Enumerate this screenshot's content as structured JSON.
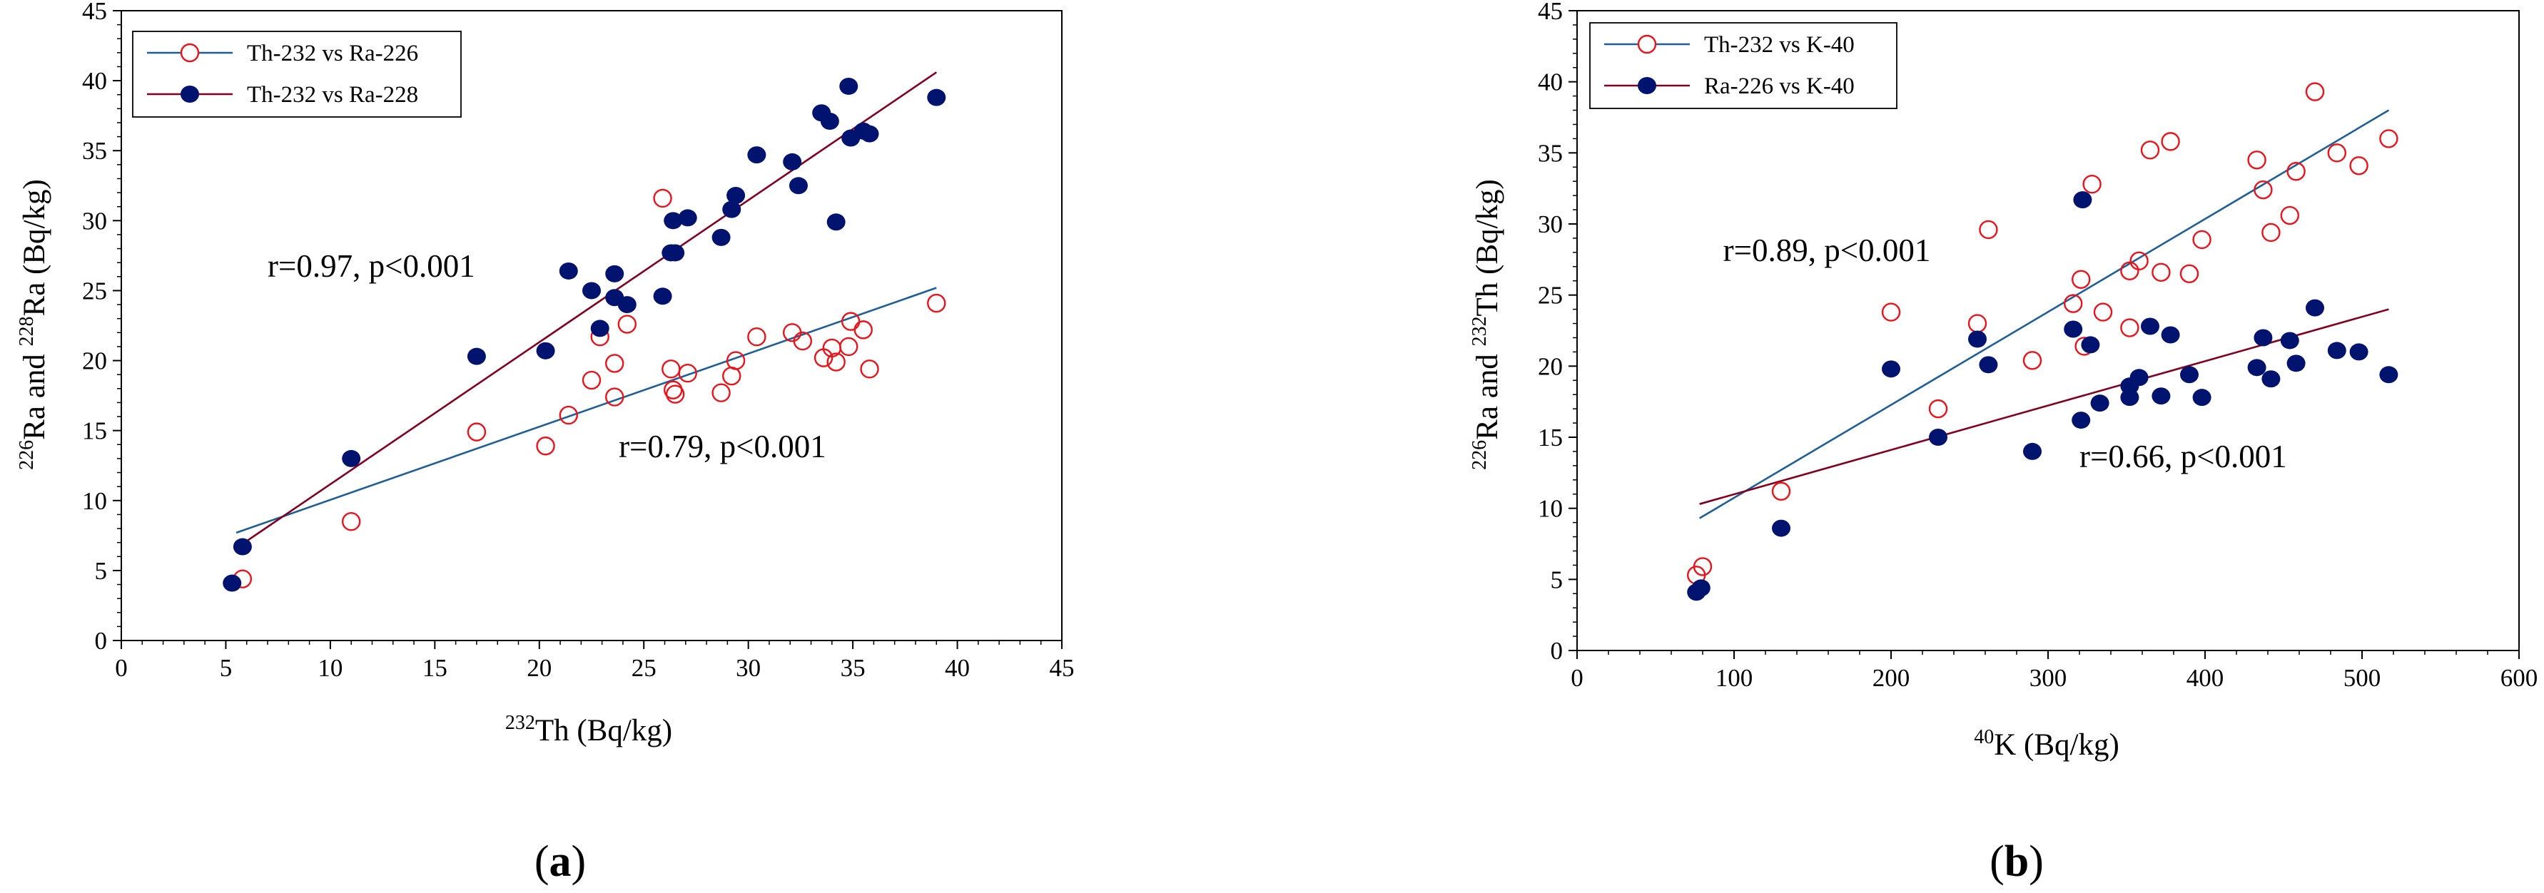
{
  "chart_data": [
    {
      "panel_label": "(a)",
      "label_char": "a",
      "type": "scatter",
      "xlabel_super": "232",
      "xlabel_main": "Th (Bq/kg)",
      "ylabel_sup1": "226",
      "ylabel_mid": "Ra and ",
      "ylabel_sup2": "228",
      "ylabel_main": "Ra (Bq/kg)",
      "xlim": [
        0,
        45
      ],
      "ylim": [
        0,
        45
      ],
      "xticks": [
        "0",
        "5",
        "10",
        "15",
        "20",
        "25",
        "30",
        "35",
        "40",
        "45"
      ],
      "yticks": [
        "0",
        "5",
        "10",
        "15",
        "20",
        "25",
        "30",
        "35",
        "40",
        "45"
      ],
      "legend_position": "top-left",
      "series": [
        {
          "name": "Th-232 vs Ra-226",
          "marker": "open-circle",
          "marker_color": "#e8141b",
          "line_color": "#1f5e96",
          "points": [
            [
              5.8,
              4.4
            ],
            [
              11.0,
              8.5
            ],
            [
              17.0,
              14.9
            ],
            [
              20.3,
              13.9
            ],
            [
              21.4,
              16.1
            ],
            [
              22.5,
              18.6
            ],
            [
              22.9,
              21.7
            ],
            [
              23.6,
              17.4
            ],
            [
              23.6,
              19.8
            ],
            [
              24.2,
              22.6
            ],
            [
              25.9,
              31.6
            ],
            [
              26.3,
              19.4
            ],
            [
              26.4,
              17.9
            ],
            [
              26.5,
              17.6
            ],
            [
              27.1,
              19.1
            ],
            [
              28.7,
              17.7
            ],
            [
              29.2,
              18.9
            ],
            [
              29.4,
              20.0
            ],
            [
              30.4,
              21.7
            ],
            [
              32.1,
              22.0
            ],
            [
              32.6,
              21.4
            ],
            [
              33.6,
              20.2
            ],
            [
              34.0,
              20.9
            ],
            [
              34.2,
              19.9
            ],
            [
              34.8,
              21.0
            ],
            [
              34.9,
              22.8
            ],
            [
              35.5,
              22.2
            ],
            [
              35.8,
              19.4
            ],
            [
              39.0,
              24.1
            ]
          ],
          "trend": {
            "x1": 5.5,
            "y1": 7.7,
            "x2": 39.0,
            "y2": 25.2
          },
          "annotation": "r=0.79, p<0.001",
          "annotation_at": [
            23.8,
            13.1
          ]
        },
        {
          "name": "Th-232 vs Ra-228",
          "marker": "filled-circle",
          "marker_color": "#00136f",
          "line_color": "#800020",
          "points": [
            [
              5.3,
              4.1
            ],
            [
              5.8,
              6.7
            ],
            [
              11.0,
              13.0
            ],
            [
              17.0,
              20.3
            ],
            [
              20.3,
              20.7
            ],
            [
              21.4,
              26.4
            ],
            [
              22.5,
              25.0
            ],
            [
              22.9,
              22.3
            ],
            [
              23.6,
              24.5
            ],
            [
              23.6,
              26.2
            ],
            [
              24.2,
              24.0
            ],
            [
              25.9,
              24.6
            ],
            [
              26.3,
              27.7
            ],
            [
              26.4,
              30.0
            ],
            [
              26.5,
              27.7
            ],
            [
              27.1,
              30.2
            ],
            [
              28.7,
              28.8
            ],
            [
              29.2,
              30.8
            ],
            [
              29.4,
              31.8
            ],
            [
              30.4,
              34.7
            ],
            [
              32.1,
              34.2
            ],
            [
              32.4,
              32.5
            ],
            [
              33.5,
              37.7
            ],
            [
              33.9,
              37.1
            ],
            [
              34.2,
              29.9
            ],
            [
              34.8,
              39.6
            ],
            [
              34.9,
              35.9
            ],
            [
              35.5,
              36.4
            ],
            [
              35.8,
              36.2
            ],
            [
              39.0,
              38.8
            ]
          ],
          "trend": {
            "x1": 5.5,
            "y1": 6.6,
            "x2": 39.0,
            "y2": 40.6
          },
          "annotation": "r=0.97, p<0.001",
          "annotation_at": [
            7.0,
            26.0
          ]
        }
      ]
    },
    {
      "panel_label": "(b)",
      "label_char": "b",
      "type": "scatter",
      "xlabel_super": "40",
      "xlabel_main": "K (Bq/kg)",
      "ylabel_sup1": "226",
      "ylabel_mid": "Ra and ",
      "ylabel_sup2": "232",
      "ylabel_main": "Th (Bq/kg)",
      "xlim": [
        0,
        600
      ],
      "ylim": [
        0,
        45
      ],
      "xticks": [
        "0",
        "100",
        "200",
        "300",
        "400",
        "500",
        "600"
      ],
      "yticks": [
        "0",
        "5",
        "10",
        "15",
        "20",
        "25",
        "30",
        "35",
        "40",
        "45"
      ],
      "legend_position": "top-left",
      "series": [
        {
          "name": "Th-232 vs K-40",
          "marker": "open-circle",
          "marker_color": "#e8141b",
          "line_color": "#1f5e96",
          "points": [
            [
              76,
              5.3
            ],
            [
              80,
              5.9
            ],
            [
              130,
              11.2
            ],
            [
              200,
              23.8
            ],
            [
              230,
              17.0
            ],
            [
              255,
              23.0
            ],
            [
              262,
              29.6
            ],
            [
              290,
              20.4
            ],
            [
              316,
              24.4
            ],
            [
              321,
              26.1
            ],
            [
              323,
              21.4
            ],
            [
              328,
              32.8
            ],
            [
              335,
              23.8
            ],
            [
              352,
              26.7
            ],
            [
              352,
              22.7
            ],
            [
              358,
              27.4
            ],
            [
              365,
              35.2
            ],
            [
              372,
              26.6
            ],
            [
              378,
              35.8
            ],
            [
              390,
              26.5
            ],
            [
              398,
              28.9
            ],
            [
              433,
              34.5
            ],
            [
              437,
              32.4
            ],
            [
              442,
              29.4
            ],
            [
              454,
              30.6
            ],
            [
              458,
              33.7
            ],
            [
              470,
              39.3
            ],
            [
              484,
              35.0
            ],
            [
              498,
              34.1
            ],
            [
              517,
              36.0
            ]
          ],
          "trend": {
            "x1": 78,
            "y1": 9.3,
            "x2": 517,
            "y2": 38.0
          },
          "annotation": "r=0.89, p<0.001",
          "annotation_at": [
            93,
            27.4
          ]
        },
        {
          "name": "Ra-226 vs K-40",
          "marker": "filled-circle",
          "marker_color": "#00136f",
          "line_color": "#800020",
          "points": [
            [
              76,
              4.1
            ],
            [
              79,
              4.4
            ],
            [
              130,
              8.6
            ],
            [
              200,
              19.8
            ],
            [
              230,
              15.0
            ],
            [
              255,
              21.9
            ],
            [
              262,
              20.1
            ],
            [
              290,
              14.0
            ],
            [
              316,
              22.6
            ],
            [
              321,
              16.2
            ],
            [
              322,
              31.7
            ],
            [
              327,
              21.5
            ],
            [
              333,
              17.4
            ],
            [
              352,
              18.6
            ],
            [
              352,
              17.8
            ],
            [
              358,
              19.2
            ],
            [
              365,
              22.8
            ],
            [
              372,
              17.9
            ],
            [
              378,
              22.2
            ],
            [
              390,
              19.4
            ],
            [
              398,
              17.8
            ],
            [
              433,
              19.9
            ],
            [
              437,
              22.0
            ],
            [
              442,
              19.1
            ],
            [
              454,
              21.8
            ],
            [
              458,
              20.2
            ],
            [
              470,
              24.1
            ],
            [
              484,
              21.1
            ],
            [
              498,
              21.0
            ],
            [
              517,
              19.4
            ]
          ],
          "trend": {
            "x1": 78,
            "y1": 10.3,
            "x2": 517,
            "y2": 24.0
          },
          "annotation": "r=0.66, p<0.001",
          "annotation_at": [
            320,
            12.9
          ]
        }
      ]
    }
  ]
}
